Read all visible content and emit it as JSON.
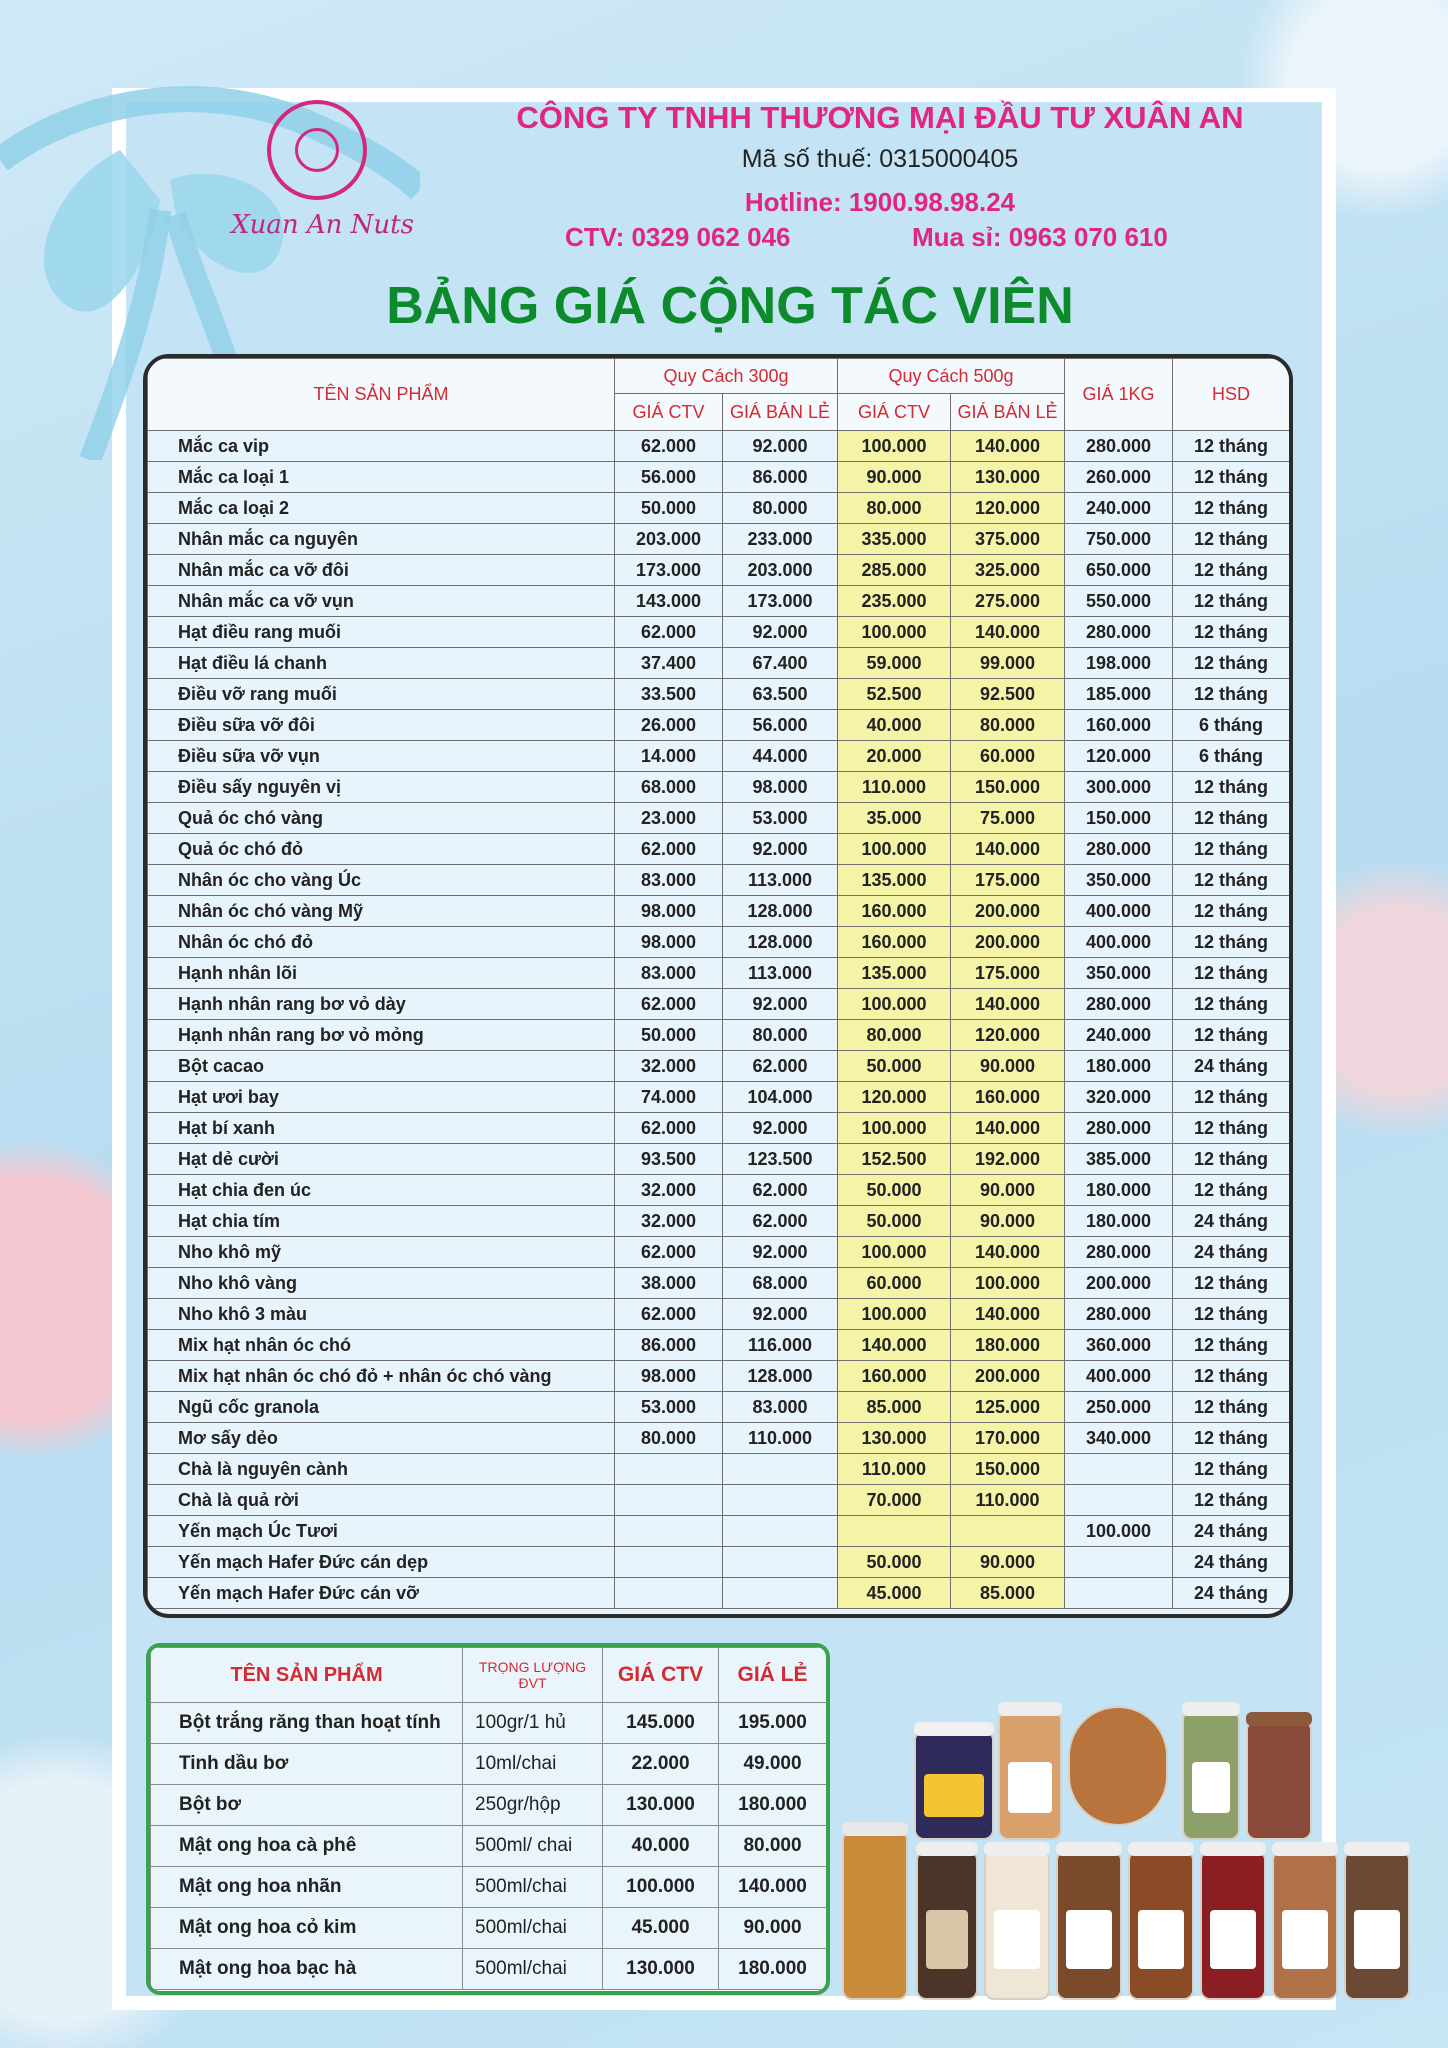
{
  "logo": {
    "text": "Xuan An Nuts"
  },
  "header": {
    "company": "CÔNG TY TNHH THƯƠNG MẠI ĐẦU TƯ XUÂN AN",
    "tax": "Mã số thuế: 0315000405",
    "hotline": "Hotline: 1900.98.98.24",
    "ctv": "CTV: 0329 062 046",
    "wholesale": "Mua sỉ: 0963 070 610",
    "title": "BẢNG GIÁ CỘNG TÁC VIÊN"
  },
  "colors": {
    "pink": "#e0267f",
    "green": "#0c8a2c",
    "red": "#d42a31",
    "yellow": "#f4f3a6"
  },
  "main_table": {
    "product_header": "TÊN SẢN PHẨM",
    "group_300": "Quy Cách 300g",
    "group_500": "Quy Cách 500g",
    "col_ctv": "GIÁ CTV",
    "col_retail": "GIÁ BÁN LẺ",
    "col_1kg": "GIÁ 1KG",
    "col_hsd": "HSD",
    "rows": [
      [
        "Mắc ca vip",
        "62.000",
        "92.000",
        "100.000",
        "140.000",
        "280.000",
        "12 tháng"
      ],
      [
        "Mắc ca loại 1",
        "56.000",
        "86.000",
        "90.000",
        "130.000",
        "260.000",
        "12 tháng"
      ],
      [
        "Mắc ca loại 2",
        "50.000",
        "80.000",
        "80.000",
        "120.000",
        "240.000",
        "12 tháng"
      ],
      [
        "Nhân mắc ca nguyên",
        "203.000",
        "233.000",
        "335.000",
        "375.000",
        "750.000",
        "12 tháng"
      ],
      [
        "Nhân mắc ca vỡ đôi",
        "173.000",
        "203.000",
        "285.000",
        "325.000",
        "650.000",
        "12 tháng"
      ],
      [
        "Nhân mắc ca vỡ vụn",
        "143.000",
        "173.000",
        "235.000",
        "275.000",
        "550.000",
        "12 tháng"
      ],
      [
        "Hạt điều rang muối",
        "62.000",
        "92.000",
        "100.000",
        "140.000",
        "280.000",
        "12 tháng"
      ],
      [
        "Hạt điều lá chanh",
        "37.400",
        "67.400",
        "59.000",
        "99.000",
        "198.000",
        "12 tháng"
      ],
      [
        "Điều vỡ rang muối",
        "33.500",
        "63.500",
        "52.500",
        "92.500",
        "185.000",
        "12 tháng"
      ],
      [
        "Điều sữa vỡ đôi",
        "26.000",
        "56.000",
        "40.000",
        "80.000",
        "160.000",
        "6 tháng"
      ],
      [
        "Điều sữa vỡ vụn",
        "14.000",
        "44.000",
        "20.000",
        "60.000",
        "120.000",
        "6 tháng"
      ],
      [
        "Điều sấy nguyên vị",
        "68.000",
        "98.000",
        "110.000",
        "150.000",
        "300.000",
        "12 tháng"
      ],
      [
        "Quả óc chó vàng",
        "23.000",
        "53.000",
        "35.000",
        "75.000",
        "150.000",
        "12 tháng"
      ],
      [
        "Quả óc chó đỏ",
        "62.000",
        "92.000",
        "100.000",
        "140.000",
        "280.000",
        "12 tháng"
      ],
      [
        "Nhân óc cho vàng Úc",
        "83.000",
        "113.000",
        "135.000",
        "175.000",
        "350.000",
        "12 tháng"
      ],
      [
        "Nhân óc chó vàng Mỹ",
        "98.000",
        "128.000",
        "160.000",
        "200.000",
        "400.000",
        "12 tháng"
      ],
      [
        "Nhân óc chó đỏ",
        "98.000",
        "128.000",
        "160.000",
        "200.000",
        "400.000",
        "12 tháng"
      ],
      [
        "Hạnh nhân lõi",
        "83.000",
        "113.000",
        "135.000",
        "175.000",
        "350.000",
        "12 tháng"
      ],
      [
        "Hạnh nhân rang bơ vỏ dày",
        "62.000",
        "92.000",
        "100.000",
        "140.000",
        "280.000",
        "12 tháng"
      ],
      [
        "Hạnh nhân rang bơ vỏ mỏng",
        "50.000",
        "80.000",
        "80.000",
        "120.000",
        "240.000",
        "12 tháng"
      ],
      [
        "Bột cacao",
        "32.000",
        "62.000",
        "50.000",
        "90.000",
        "180.000",
        "24 tháng"
      ],
      [
        "Hạt ươi bay",
        "74.000",
        "104.000",
        "120.000",
        "160.000",
        "320.000",
        "12 tháng"
      ],
      [
        "Hạt bí xanh",
        "62.000",
        "92.000",
        "100.000",
        "140.000",
        "280.000",
        "12 tháng"
      ],
      [
        "Hạt dẻ cười",
        "93.500",
        "123.500",
        "152.500",
        "192.000",
        "385.000",
        "12 tháng"
      ],
      [
        "Hạt chia đen úc",
        "32.000",
        "62.000",
        "50.000",
        "90.000",
        "180.000",
        "12 tháng"
      ],
      [
        "Hạt chia tím",
        "32.000",
        "62.000",
        "50.000",
        "90.000",
        "180.000",
        "24 tháng"
      ],
      [
        "Nho khô mỹ",
        "62.000",
        "92.000",
        "100.000",
        "140.000",
        "280.000",
        "24 tháng"
      ],
      [
        "Nho khô vàng",
        "38.000",
        "68.000",
        "60.000",
        "100.000",
        "200.000",
        "12 tháng"
      ],
      [
        "Nho khô 3 màu",
        "62.000",
        "92.000",
        "100.000",
        "140.000",
        "280.000",
        "12 tháng"
      ],
      [
        "Mix hạt nhân óc chó",
        "86.000",
        "116.000",
        "140.000",
        "180.000",
        "360.000",
        "12 tháng"
      ],
      [
        "Mix hạt nhân óc chó đỏ + nhân óc chó vàng",
        "98.000",
        "128.000",
        "160.000",
        "200.000",
        "400.000",
        "12 tháng"
      ],
      [
        "Ngũ cốc granola",
        "53.000",
        "83.000",
        "85.000",
        "125.000",
        "250.000",
        "12 tháng"
      ],
      [
        "Mơ sấy dẻo",
        "80.000",
        "110.000",
        "130.000",
        "170.000",
        "340.000",
        "12 tháng"
      ],
      [
        "Chà là nguyên cành",
        "",
        "",
        "110.000",
        "150.000",
        "",
        "12 tháng"
      ],
      [
        "Chà là quả rời",
        "",
        "",
        "70.000",
        "110.000",
        "",
        "12 tháng"
      ],
      [
        "Yến mạch Úc Tươi",
        "",
        "",
        "",
        "",
        "100.000",
        "24 tháng"
      ],
      [
        "Yến mạch Hafer Đức cán dẹp",
        "",
        "",
        "50.000",
        "90.000",
        "",
        "24 tháng"
      ],
      [
        "Yến mạch Hafer Đức cán vỡ",
        "",
        "",
        "45.000",
        "85.000",
        "",
        "24 tháng"
      ]
    ]
  },
  "sub_table": {
    "product_header": "TÊN SẢN PHẨM",
    "unit_header": "TRỌNG LƯỢNG ĐVT",
    "ctv_header": "GIÁ CTV",
    "retail_header": "GIÁ  LẺ",
    "rows": [
      [
        "Bột trắng răng than hoạt tính",
        "100gr/1 hủ",
        "145.000",
        "195.000"
      ],
      [
        "Tinh dầu bơ",
        "10ml/chai",
        "22.000",
        "49.000"
      ],
      [
        "Bột bơ",
        "250gr/hộp",
        "130.000",
        "180.000"
      ],
      [
        "Mật ong hoa cà phê",
        "500ml/ chai",
        "40.000",
        "80.000"
      ],
      [
        "Mật ong hoa nhãn",
        "500ml/chai",
        "100.000",
        "140.000"
      ],
      [
        "Mật ong hoa cỏ kim",
        "500ml/chai",
        "45.000",
        "90.000"
      ],
      [
        "Mật ong hoa bạc hà",
        "500ml/chai",
        "130.000",
        "180.000"
      ]
    ]
  }
}
